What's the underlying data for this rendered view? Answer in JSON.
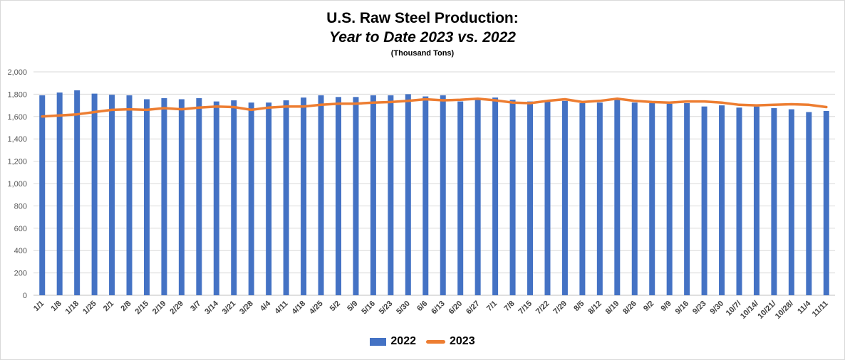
{
  "chart_data": {
    "type": "bar",
    "title": "U.S. Raw Steel Production:",
    "subtitle": "Year to Date 2023 vs. 2022",
    "unit_note": "(Thousand Tons)",
    "xlabel": "",
    "ylabel": "",
    "ylim": [
      0,
      2000
    ],
    "yticks": [
      0,
      200,
      400,
      600,
      800,
      1000,
      1200,
      1400,
      1600,
      1800,
      2000
    ],
    "ytick_labels": [
      "0",
      "200",
      "400",
      "600",
      "800",
      "1,000",
      "1,200",
      "1,400",
      "1,600",
      "1,800",
      "2,000"
    ],
    "grid": true,
    "legend": "bottom",
    "categories": [
      "1/1",
      "1/8",
      "1/18",
      "1/25",
      "2/1",
      "2/8",
      "2/15",
      "2/19",
      "2/29",
      "3/7",
      "3/14",
      "3/21",
      "3/28",
      "4/4",
      "4/11",
      "4/18",
      "4/25",
      "5/2",
      "5/9",
      "5/16",
      "5/23",
      "5/30",
      "6/6",
      "6/13",
      "6/20",
      "6/27",
      "7/1",
      "7/8",
      "7/15",
      "7/22",
      "7/29",
      "8/5",
      "8/12",
      "8/19",
      "8/26",
      "9/2",
      "9/9",
      "9/16",
      "9/23",
      "9/30",
      "10/7/",
      "10/14/",
      "10/21/",
      "10/28/",
      "11/4",
      "11/11"
    ],
    "series": [
      {
        "name": "2022",
        "type": "bar",
        "color": "#4472c4",
        "values": [
          1790,
          1815,
          1835,
          1805,
          1795,
          1790,
          1755,
          1765,
          1755,
          1765,
          1735,
          1745,
          1725,
          1725,
          1745,
          1770,
          1790,
          1775,
          1775,
          1790,
          1790,
          1800,
          1780,
          1790,
          1735,
          1750,
          1770,
          1750,
          1735,
          1735,
          1740,
          1720,
          1725,
          1750,
          1725,
          1720,
          1715,
          1720,
          1690,
          1700,
          1680,
          1690,
          1675,
          1665,
          1640,
          1650
        ]
      },
      {
        "name": "2023",
        "type": "line",
        "color": "#ed7d31",
        "values": [
          1600,
          1610,
          1620,
          1640,
          1660,
          1665,
          1660,
          1675,
          1665,
          1680,
          1690,
          1685,
          1660,
          1680,
          1690,
          1690,
          1705,
          1715,
          1715,
          1725,
          1730,
          1740,
          1755,
          1745,
          1750,
          1760,
          1745,
          1725,
          1720,
          1740,
          1755,
          1730,
          1740,
          1760,
          1740,
          1730,
          1725,
          1735,
          1735,
          1725,
          1705,
          1700,
          1705,
          1710,
          1705,
          1685
        ]
      }
    ]
  }
}
